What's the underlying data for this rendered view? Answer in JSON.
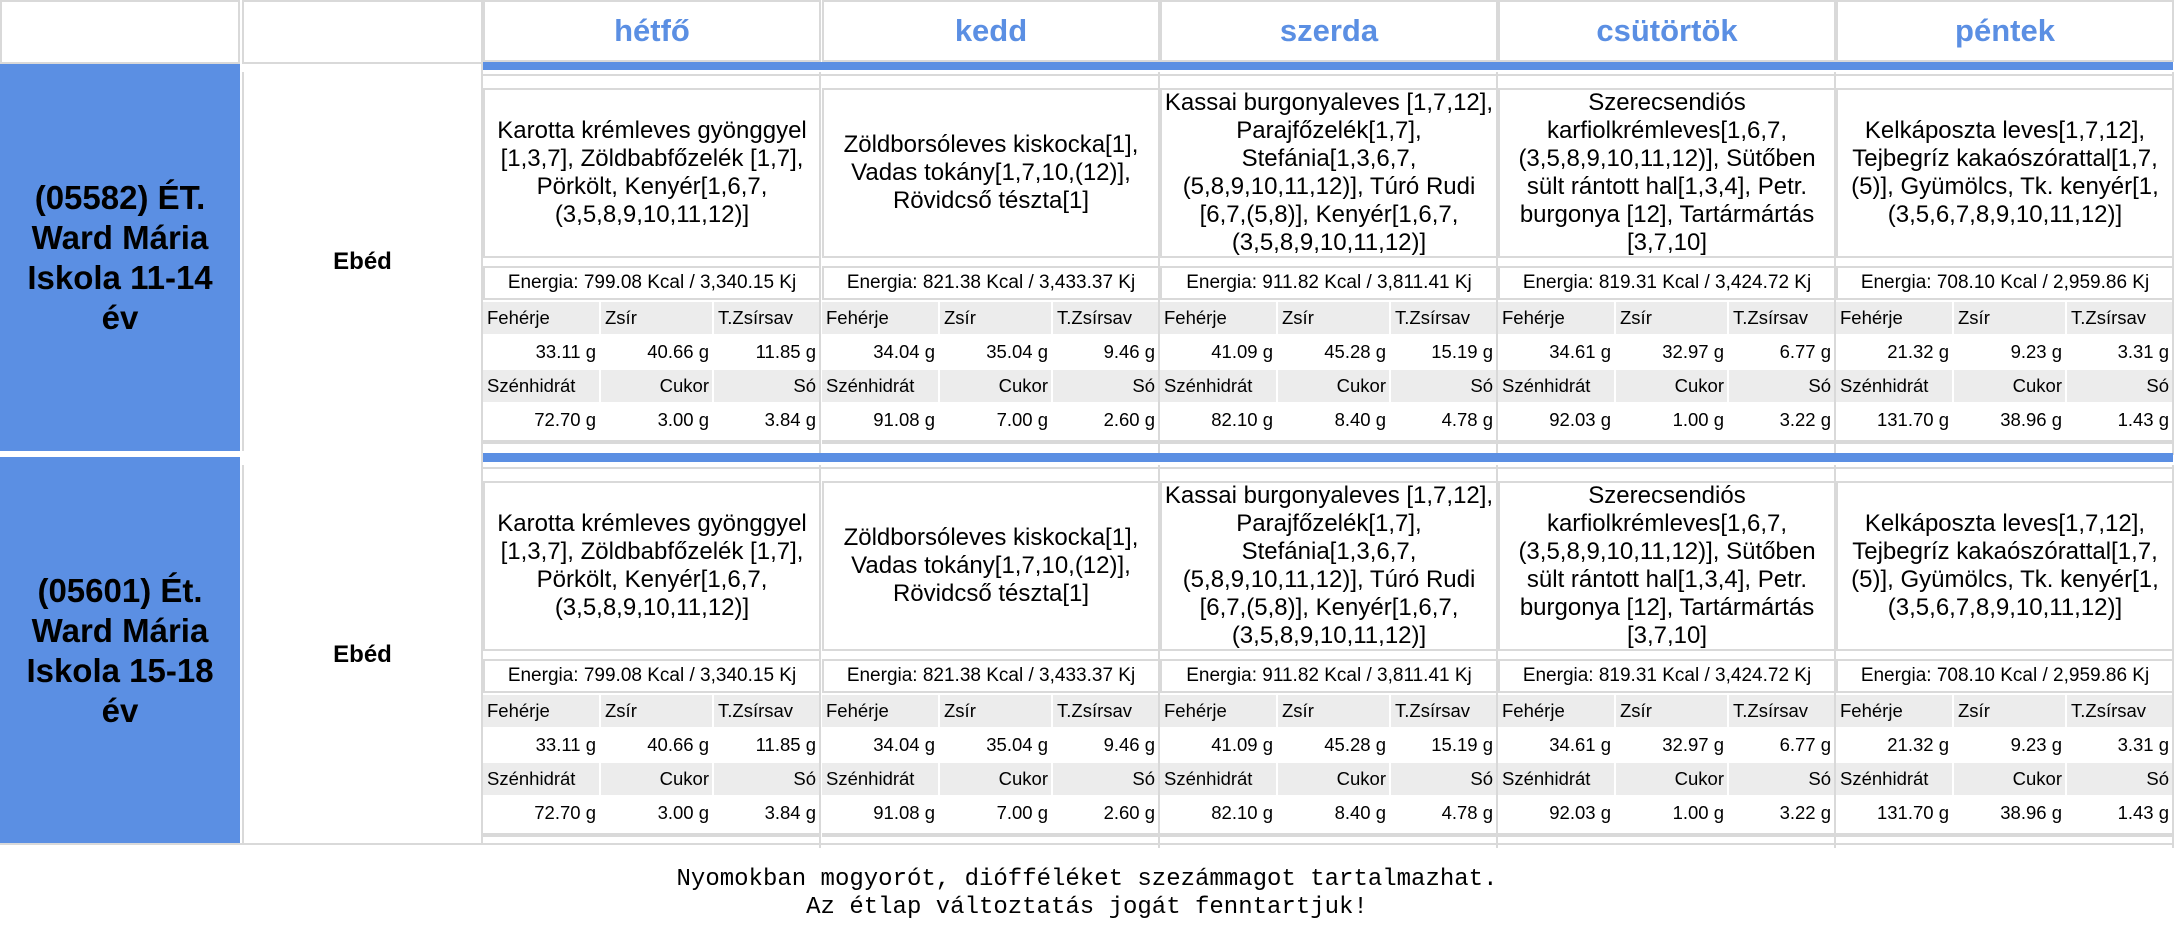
{
  "days": [
    "hétfő",
    "kedd",
    "szerda",
    "csütörtök",
    "péntek"
  ],
  "nutrient_labels": {
    "feherje": "Fehérje",
    "zsir": "Zsír",
    "tzsirsav": "T.Zsírsav",
    "szenhidrat": "Szénhidrát",
    "cukor": "Cukor",
    "so": "Só"
  },
  "groups": [
    {
      "school": "(05582) ÉT. Ward Mária Iskola 11-14 év",
      "meal": "Ebéd",
      "days": [
        {
          "menu": "Karotta krémleves gyönggyel [1,3,7], Zöldbabfőzelék [1,7], Pörkölt, Kenyér[1,6,7, (3,5,8,9,10,11,12)]",
          "energy": "Energia: 799.08 Kcal / 3,340.15 Kj",
          "feherje": "33.11 g",
          "zsir": "40.66 g",
          "tzsirsav": "11.85 g",
          "szenhidrat": "72.70 g",
          "cukor": "3.00 g",
          "so": "3.84 g"
        },
        {
          "menu": "Zöldborsóleves kiskocka[1], Vadas tokány[1,7,10,(12)], Rövidcső tészta[1]",
          "energy": "Energia: 821.38 Kcal / 3,433.37 Kj",
          "feherje": "34.04 g",
          "zsir": "35.04 g",
          "tzsirsav": "9.46 g",
          "szenhidrat": "91.08 g",
          "cukor": "7.00 g",
          "so": "2.60 g"
        },
        {
          "menu": "Kassai burgonyaleves [1,7,12], Parajfőzelék[1,7], Stefánia[1,3,6,7, (5,8,9,10,11,12)], Túró Rudi [6,7,(5,8)], Kenyér[1,6,7, (3,5,8,9,10,11,12)]",
          "energy": "Energia: 911.82 Kcal / 3,811.41 Kj",
          "feherje": "41.09 g",
          "zsir": "45.28 g",
          "tzsirsav": "15.19 g",
          "szenhidrat": "82.10 g",
          "cukor": "8.40 g",
          "so": "4.78 g"
        },
        {
          "menu": "Szerecsendiós karfiolkrémleves[1,6,7, (3,5,8,9,10,11,12)], Sütőben sült rántott hal[1,3,4], Petr. burgonya [12], Tartármártás [3,7,10]",
          "energy": "Energia: 819.31 Kcal / 3,424.72 Kj",
          "feherje": "34.61 g",
          "zsir": "32.97 g",
          "tzsirsav": "6.77 g",
          "szenhidrat": "92.03 g",
          "cukor": "1.00 g",
          "so": "3.22 g"
        },
        {
          "menu": "Kelkáposzta leves[1,7,12], Tejbegríz kakaószórattal[1,7, (5)], Gyümölcs, Tk. kenyér[1, (3,5,6,7,8,9,10,11,12)]",
          "energy": "Energia: 708.10 Kcal / 2,959.86 Kj",
          "feherje": "21.32 g",
          "zsir": "9.23 g",
          "tzsirsav": "3.31 g",
          "szenhidrat": "131.70 g",
          "cukor": "38.96 g",
          "so": "1.43 g"
        }
      ]
    },
    {
      "school": "(05601) Ét. Ward Mária Iskola 15-18 év",
      "meal": "Ebéd",
      "days": [
        {
          "menu": "Karotta krémleves gyönggyel [1,3,7], Zöldbabfőzelék [1,7], Pörkölt, Kenyér[1,6,7, (3,5,8,9,10,11,12)]",
          "energy": "Energia: 799.08 Kcal / 3,340.15 Kj",
          "feherje": "33.11 g",
          "zsir": "40.66 g",
          "tzsirsav": "11.85 g",
          "szenhidrat": "72.70 g",
          "cukor": "3.00 g",
          "so": "3.84 g"
        },
        {
          "menu": "Zöldborsóleves kiskocka[1], Vadas tokány[1,7,10,(12)], Rövidcső tészta[1]",
          "energy": "Energia: 821.38 Kcal / 3,433.37 Kj",
          "feherje": "34.04 g",
          "zsir": "35.04 g",
          "tzsirsav": "9.46 g",
          "szenhidrat": "91.08 g",
          "cukor": "7.00 g",
          "so": "2.60 g"
        },
        {
          "menu": "Kassai burgonyaleves [1,7,12], Parajfőzelék[1,7], Stefánia[1,3,6,7, (5,8,9,10,11,12)], Túró Rudi [6,7,(5,8)], Kenyér[1,6,7, (3,5,8,9,10,11,12)]",
          "energy": "Energia: 911.82 Kcal / 3,811.41 Kj",
          "feherje": "41.09 g",
          "zsir": "45.28 g",
          "tzsirsav": "15.19 g",
          "szenhidrat": "82.10 g",
          "cukor": "8.40 g",
          "so": "4.78 g"
        },
        {
          "menu": "Szerecsendiós karfiolkrémleves[1,6,7, (3,5,8,9,10,11,12)], Sütőben sült rántott hal[1,3,4], Petr. burgonya [12], Tartármártás [3,7,10]",
          "energy": "Energia: 819.31 Kcal / 3,424.72 Kj",
          "feherje": "34.61 g",
          "zsir": "32.97 g",
          "tzsirsav": "6.77 g",
          "szenhidrat": "92.03 g",
          "cukor": "1.00 g",
          "so": "3.22 g"
        },
        {
          "menu": "Kelkáposzta leves[1,7,12], Tejbegríz kakaószórattal[1,7, (5)], Gyümölcs, Tk. kenyér[1, (3,5,6,7,8,9,10,11,12)]",
          "energy": "Energia: 708.10 Kcal / 2,959.86 Kj",
          "feherje": "21.32 g",
          "zsir": "9.23 g",
          "tzsirsav": "3.31 g",
          "szenhidrat": "131.70 g",
          "cukor": "38.96 g",
          "so": "1.43 g"
        }
      ]
    }
  ],
  "footer": {
    "line1": "Nyomokban mogyorót, diófféléket szezámmagot tartalmazhat.",
    "line2": "Az étlap változtatás jogát fenntartjuk!"
  },
  "colors": {
    "accent": "#5b8fe3",
    "grid": "#d9d9d9",
    "label_bg": "#ececec"
  }
}
